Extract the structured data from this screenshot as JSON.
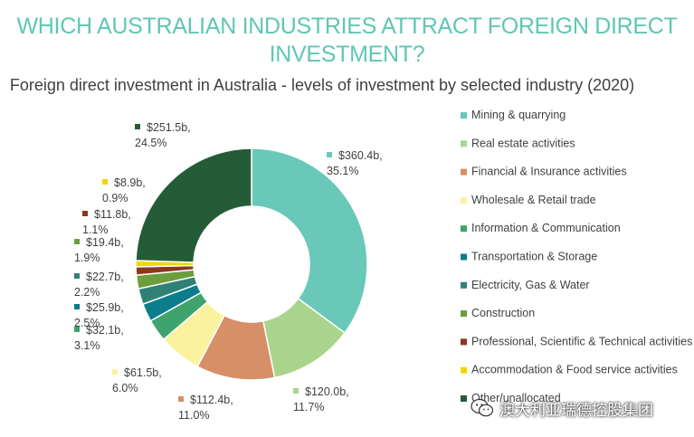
{
  "header": {
    "title": "WHICH AUSTRALIAN INDUSTRIES ATTRACT FOREIGN DIRECT INVESTMENT?"
  },
  "chart_data": {
    "type": "pie",
    "donut": true,
    "title": "Foreign direct investment in Australia - levels of investment by selected industry (2020)",
    "legend_position": "right",
    "slices": [
      {
        "name": "Mining & quarrying",
        "value": 360.4,
        "value_label": "$360.4b,",
        "percent_label": "35.1%",
        "color": "#69c8b8"
      },
      {
        "name": "Real estate activities",
        "value": 120.0,
        "value_label": "$120.0b,",
        "percent_label": "11.7%",
        "color": "#aad48c"
      },
      {
        "name": "Financial & Insurance activities",
        "value": 112.4,
        "value_label": "$112.4b,",
        "percent_label": "11.0%",
        "color": "#d68f66"
      },
      {
        "name": "Wholesale & Retail trade",
        "value": 61.5,
        "value_label": "$61.5b,",
        "percent_label": "6.0%",
        "color": "#fbf2a0"
      },
      {
        "name": "Information & Communication",
        "value": 32.1,
        "value_label": "$32.1b,",
        "percent_label": "3.1%",
        "color": "#3fa36d"
      },
      {
        "name": "Transportation & Storage",
        "value": 25.9,
        "value_label": "$25.9b,",
        "percent_label": "2.5%",
        "color": "#0b7d8c"
      },
      {
        "name": "Electricity, Gas & Water",
        "value": 22.7,
        "value_label": "$22.7b,",
        "percent_label": "2.2%",
        "color": "#2f8175"
      },
      {
        "name": "Construction",
        "value": 19.4,
        "value_label": "$19.4b,",
        "percent_label": "1.9%",
        "color": "#6c9e3c"
      },
      {
        "name": "Professional, Scientific & Technical activities",
        "value": 11.8,
        "value_label": "$11.8b,",
        "percent_label": "1.1%",
        "color": "#8a3a1c"
      },
      {
        "name": "Accommodation & Food service activities",
        "value": 8.9,
        "value_label": "$8.9b,",
        "percent_label": "0.9%",
        "color": "#f2d600"
      },
      {
        "name": "Other/unallocated",
        "value": 251.5,
        "value_label": "$251.5b,",
        "percent_label": "24.5%",
        "color": "#255c38"
      }
    ]
  },
  "watermark": {
    "text": "澳大利亚瑞德控股集团"
  }
}
